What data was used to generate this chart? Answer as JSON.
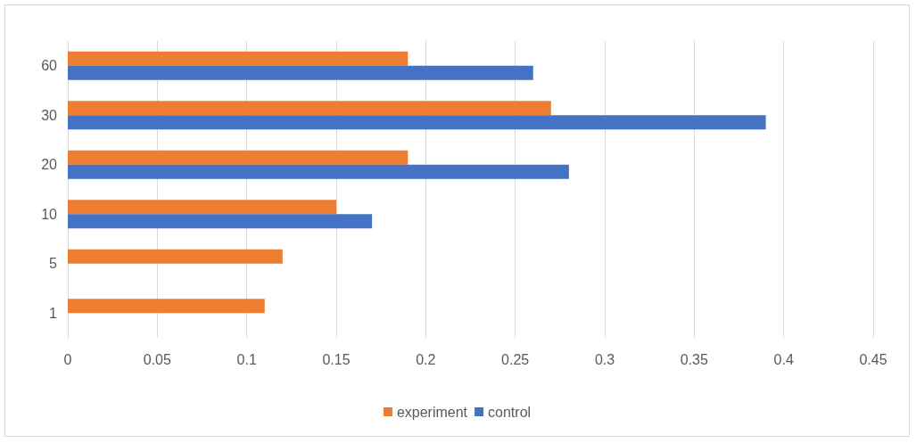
{
  "chart_data": {
    "type": "bar",
    "orientation": "horizontal",
    "categories": [
      "60",
      "30",
      "20",
      "10",
      "5",
      "1"
    ],
    "series": [
      {
        "name": "experiment",
        "color": "#ed7d31",
        "values": [
          0.19,
          0.27,
          0.19,
          0.15,
          0.12,
          0.11
        ]
      },
      {
        "name": "control",
        "color": "#4472c4",
        "values": [
          0.26,
          0.39,
          0.28,
          0.17,
          null,
          null
        ]
      }
    ],
    "xlim": [
      0,
      0.45
    ],
    "xticks": [
      0,
      0.05,
      0.1,
      0.15,
      0.2,
      0.25,
      0.3,
      0.35,
      0.4,
      0.45
    ],
    "grid": "x",
    "legend": "bottom"
  }
}
